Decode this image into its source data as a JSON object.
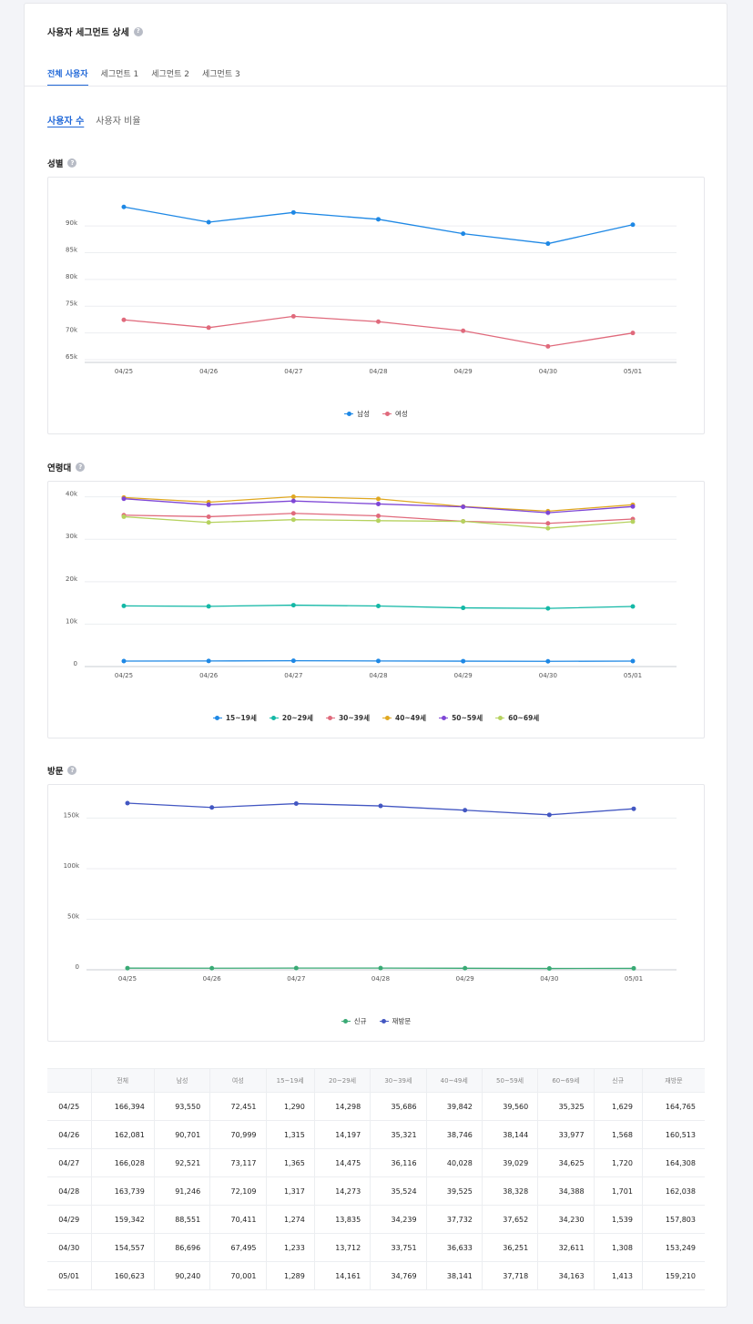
{
  "header": {
    "title": "사용자 세그먼트 상세",
    "help": "?"
  },
  "tabs": [
    "전체 사용자",
    "세그먼트 1",
    "세그먼트 2",
    "세그먼트 3"
  ],
  "subtabs": [
    "사용자 수",
    "사용자 비율"
  ],
  "colors": {
    "male": "#1e88e5",
    "female": "#e06a7c",
    "age": [
      "#1e88e5",
      "#14b8a6",
      "#e06a7c",
      "#e0a820",
      "#7e46d6",
      "#b6d25f"
    ],
    "new": "#3aaa75",
    "revisit": "#4357c2"
  },
  "chart_data": [
    {
      "type": "line",
      "title": "성별",
      "x": [
        "04/25",
        "04/26",
        "04/27",
        "04/28",
        "04/29",
        "04/30",
        "05/01"
      ],
      "yticks": [
        "65k",
        "70k",
        "75k",
        "80k",
        "85k",
        "90k"
      ],
      "ylim": [
        64500,
        97000
      ],
      "grid": true,
      "legend": "bottom-center",
      "series": [
        {
          "name": "남성",
          "values": [
            93550,
            90701,
            92521,
            91246,
            88551,
            86696,
            90240
          ]
        },
        {
          "name": "여성",
          "values": [
            72451,
            70999,
            73117,
            72109,
            70411,
            67495,
            70001
          ]
        }
      ]
    },
    {
      "type": "line",
      "title": "연령대",
      "x": [
        "04/25",
        "04/26",
        "04/27",
        "04/28",
        "04/29",
        "04/30",
        "05/01"
      ],
      "yticks": [
        "0",
        "10k",
        "20k",
        "30k",
        "40k"
      ],
      "ylim": [
        0,
        41000
      ],
      "grid": true,
      "legend": "bottom-center",
      "series": [
        {
          "name": "15~19세",
          "values": [
            1290,
            1315,
            1365,
            1317,
            1274,
            1233,
            1289
          ]
        },
        {
          "name": "20~29세",
          "values": [
            14298,
            14197,
            14475,
            14273,
            13835,
            13712,
            14161
          ]
        },
        {
          "name": "30~39세",
          "values": [
            35686,
            35321,
            36116,
            35524,
            34239,
            33751,
            34769
          ]
        },
        {
          "name": "40~49세",
          "values": [
            39842,
            38746,
            40028,
            39525,
            37732,
            36633,
            38141
          ]
        },
        {
          "name": "50~59세",
          "values": [
            39560,
            38144,
            39029,
            38328,
            37652,
            36251,
            37718
          ]
        },
        {
          "name": "60~69세",
          "values": [
            35325,
            33977,
            34625,
            34388,
            34230,
            32611,
            34163
          ]
        }
      ]
    },
    {
      "type": "line",
      "title": "방문",
      "x": [
        "04/25",
        "04/26",
        "04/27",
        "04/28",
        "04/29",
        "04/30",
        "05/01"
      ],
      "yticks": [
        "0",
        "50k",
        "100k",
        "150k"
      ],
      "ylim": [
        0,
        172000
      ],
      "grid": true,
      "legend": "bottom-center",
      "series": [
        {
          "name": "신규",
          "values": [
            1629,
            1568,
            1720,
            1701,
            1539,
            1308,
            1413
          ]
        },
        {
          "name": "재방문",
          "values": [
            164765,
            160513,
            164308,
            162038,
            157803,
            153249,
            159210
          ]
        }
      ]
    }
  ],
  "table": {
    "headers": [
      "",
      "전체",
      "남성",
      "여성",
      "15~19세",
      "20~29세",
      "30~39세",
      "40~49세",
      "50~59세",
      "60~69세",
      "신규",
      "재방문"
    ],
    "rows": [
      [
        "04/25",
        "166,394",
        "93,550",
        "72,451",
        "1,290",
        "14,298",
        "35,686",
        "39,842",
        "39,560",
        "35,325",
        "1,629",
        "164,765"
      ],
      [
        "04/26",
        "162,081",
        "90,701",
        "70,999",
        "1,315",
        "14,197",
        "35,321",
        "38,746",
        "38,144",
        "33,977",
        "1,568",
        "160,513"
      ],
      [
        "04/27",
        "166,028",
        "92,521",
        "73,117",
        "1,365",
        "14,475",
        "36,116",
        "40,028",
        "39,029",
        "34,625",
        "1,720",
        "164,308"
      ],
      [
        "04/28",
        "163,739",
        "91,246",
        "72,109",
        "1,317",
        "14,273",
        "35,524",
        "39,525",
        "38,328",
        "34,388",
        "1,701",
        "162,038"
      ],
      [
        "04/29",
        "159,342",
        "88,551",
        "70,411",
        "1,274",
        "13,835",
        "34,239",
        "37,732",
        "37,652",
        "34,230",
        "1,539",
        "157,803"
      ],
      [
        "04/30",
        "154,557",
        "86,696",
        "67,495",
        "1,233",
        "13,712",
        "33,751",
        "36,633",
        "36,251",
        "32,611",
        "1,308",
        "153,249"
      ],
      [
        "05/01",
        "160,623",
        "90,240",
        "70,001",
        "1,289",
        "14,161",
        "34,769",
        "38,141",
        "37,718",
        "34,163",
        "1,413",
        "159,210"
      ]
    ]
  }
}
